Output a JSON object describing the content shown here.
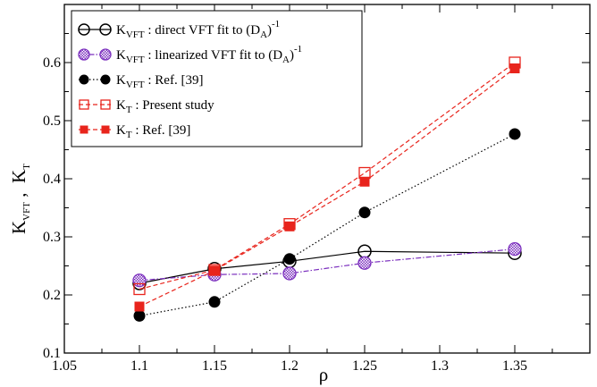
{
  "chart_data": {
    "type": "line",
    "xlabel": "ρ",
    "ylabel": {
      "main": "K",
      "sub1": "VFT",
      "sep": " ,  ",
      "main2": "K",
      "sub2": "T"
    },
    "xlim": [
      1.05,
      1.4
    ],
    "ylim": [
      0.1,
      0.7
    ],
    "xticks": [
      1.05,
      1.1,
      1.15,
      1.2,
      1.25,
      1.3,
      1.35
    ],
    "xtick_labels": [
      "1.05",
      "1.1",
      "1.15",
      "1.2",
      "1.25",
      "1.3",
      "1.35"
    ],
    "yticks": [
      0.1,
      0.2,
      0.3,
      0.4,
      0.5,
      0.6
    ],
    "ytick_labels": [
      "0.1",
      "0.2",
      "0.3",
      "0.4",
      "0.5",
      "0.6"
    ],
    "grid": false,
    "legend_position": "top-left",
    "series": [
      {
        "key": "direct",
        "legend": {
          "k": "K",
          "ksub": "VFT",
          "text": " : direct VFT fit to (D",
          "dsub": "A",
          "close": ")",
          "sup": "-1"
        },
        "x": [
          1.1,
          1.15,
          1.2,
          1.25,
          1.35
        ],
        "y": [
          0.22,
          0.245,
          0.258,
          0.275,
          0.272
        ],
        "color": "#000000",
        "marker": "open-circle",
        "line": "solid"
      },
      {
        "key": "linearized",
        "legend": {
          "k": "K",
          "ksub": "VFT",
          "text": " : linearized VFT fit to (D",
          "dsub": "A",
          "close": ")",
          "sup": "-1"
        },
        "x": [
          1.1,
          1.15,
          1.2,
          1.25,
          1.35
        ],
        "y": [
          0.225,
          0.235,
          0.237,
          0.255,
          0.279
        ],
        "color": "#7b2fbe",
        "marker": "checker-circle",
        "line": "dashdot"
      },
      {
        "key": "vft_ref",
        "legend": {
          "k": "K",
          "ksub": "VFT",
          "text": " : Ref. [39]"
        },
        "x": [
          1.1,
          1.15,
          1.2,
          1.25,
          1.35
        ],
        "y": [
          0.164,
          0.188,
          0.262,
          0.342,
          0.477
        ],
        "color": "#000000",
        "marker": "filled-circle",
        "line": "dotted"
      },
      {
        "key": "kt_present",
        "legend": {
          "k": "K",
          "ksub": "T",
          "text": " : Present study"
        },
        "x": [
          1.1,
          1.15,
          1.2,
          1.25,
          1.35
        ],
        "y": [
          0.21,
          0.243,
          0.322,
          0.41,
          0.6
        ],
        "color": "#e8241c",
        "marker": "open-square",
        "line": "dashed"
      },
      {
        "key": "kt_ref",
        "legend": {
          "k": "K",
          "ksub": "T",
          "text": " : Ref. [39]"
        },
        "x": [
          1.1,
          1.15,
          1.2,
          1.25,
          1.35
        ],
        "y": [
          0.18,
          0.242,
          0.318,
          0.395,
          0.59
        ],
        "color": "#e8241c",
        "marker": "filled-square",
        "line": "dashed"
      }
    ]
  }
}
